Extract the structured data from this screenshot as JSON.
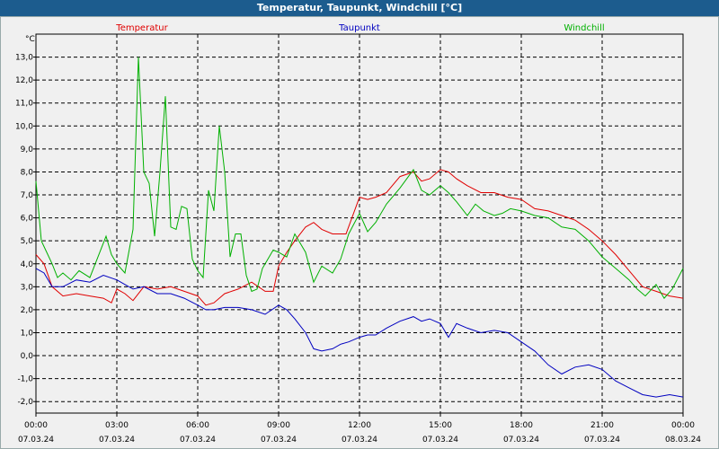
{
  "window": {
    "title": "Temperatur, Taupunkt, Windchill [°C]"
  },
  "chart_data": {
    "type": "line",
    "title": "Temperatur, Taupunkt, Windchill [°C]",
    "ylabel": "°C",
    "ylim": [
      -2.5,
      14.0
    ],
    "xlim": [
      0,
      24
    ],
    "grid": true,
    "legend_placement": "top",
    "y_ticks": [
      "-2,0",
      "-1,0",
      "0,0",
      "1,0",
      "2,0",
      "3,0",
      "4,0",
      "5,0",
      "6,0",
      "7,0",
      "8,0",
      "9,0",
      "10,0",
      "11,0",
      "12,0",
      "13,0"
    ],
    "x_ticks": [
      {
        "time": "00:00",
        "date": "07.03.24"
      },
      {
        "time": "03:00",
        "date": "07.03.24"
      },
      {
        "time": "06:00",
        "date": "07.03.24"
      },
      {
        "time": "09:00",
        "date": "07.03.24"
      },
      {
        "time": "12:00",
        "date": "07.03.24"
      },
      {
        "time": "15:00",
        "date": "07.03.24"
      },
      {
        "time": "18:00",
        "date": "07.03.24"
      },
      {
        "time": "21:00",
        "date": "07.03.24"
      },
      {
        "time": "00:00",
        "date": "08.03.24"
      }
    ],
    "series": [
      {
        "name": "Temperatur",
        "color": "#e00000",
        "x": [
          0,
          0.3,
          0.6,
          1,
          1.5,
          2,
          2.5,
          2.8,
          3,
          3.3,
          3.6,
          4,
          4.5,
          5,
          5.5,
          6,
          6.3,
          6.6,
          7,
          7.5,
          8,
          8.5,
          8.8,
          9,
          9.3,
          9.6,
          10,
          10.3,
          10.6,
          11,
          11.5,
          12,
          12.3,
          12.6,
          13,
          13.5,
          14,
          14.3,
          14.6,
          15,
          15.3,
          15.6,
          16,
          16.5,
          17,
          17.5,
          18,
          18.5,
          19,
          19.5,
          20,
          20.5,
          21,
          21.5,
          22,
          22.5,
          23,
          23.5,
          24
        ],
        "values": [
          4.4,
          4.0,
          3.0,
          2.6,
          2.7,
          2.6,
          2.5,
          2.3,
          2.9,
          2.7,
          2.4,
          3.0,
          2.9,
          3.0,
          2.8,
          2.6,
          2.2,
          2.3,
          2.7,
          2.9,
          3.2,
          2.8,
          2.8,
          3.9,
          4.5,
          5.0,
          5.6,
          5.8,
          5.5,
          5.3,
          5.3,
          6.9,
          6.8,
          6.9,
          7.1,
          7.8,
          8.0,
          7.6,
          7.7,
          8.1,
          8.0,
          7.7,
          7.4,
          7.1,
          7.1,
          6.9,
          6.8,
          6.4,
          6.3,
          6.1,
          5.9,
          5.5,
          5.0,
          4.4,
          3.7,
          3.0,
          2.8,
          2.6,
          2.5
        ]
      },
      {
        "name": "Taupunkt",
        "color": "#0000c0",
        "x": [
          0,
          0.3,
          0.6,
          1,
          1.5,
          2,
          2.5,
          3,
          3.3,
          3.6,
          4,
          4.5,
          5,
          5.5,
          6,
          6.3,
          6.6,
          7,
          7.5,
          8,
          8.5,
          9,
          9.3,
          9.6,
          10,
          10.3,
          10.6,
          11,
          11.3,
          11.6,
          12,
          12.3,
          12.6,
          13,
          13.5,
          14,
          14.3,
          14.6,
          15,
          15.3,
          15.6,
          16,
          16.5,
          17,
          17.5,
          18,
          18.5,
          19,
          19.5,
          20,
          20.5,
          21,
          21.5,
          22,
          22.5,
          23,
          23.5,
          24
        ],
        "values": [
          3.8,
          3.6,
          3.0,
          3.0,
          3.3,
          3.2,
          3.5,
          3.3,
          3.1,
          2.9,
          3.0,
          2.7,
          2.7,
          2.5,
          2.2,
          2.0,
          2.0,
          2.1,
          2.1,
          2.0,
          1.8,
          2.2,
          2.0,
          1.6,
          1.0,
          0.3,
          0.2,
          0.3,
          0.5,
          0.6,
          0.8,
          0.9,
          0.9,
          1.2,
          1.5,
          1.7,
          1.5,
          1.6,
          1.4,
          0.8,
          1.4,
          1.2,
          1.0,
          1.1,
          1.0,
          0.6,
          0.2,
          -0.4,
          -0.8,
          -0.5,
          -0.4,
          -0.6,
          -1.1,
          -1.4,
          -1.7,
          -1.8,
          -1.7,
          -1.8
        ]
      },
      {
        "name": "Windchill",
        "color": "#00b000",
        "x": [
          0,
          0.2,
          0.4,
          0.6,
          0.8,
          1,
          1.3,
          1.6,
          2,
          2.3,
          2.6,
          2.8,
          3,
          3.3,
          3.6,
          3.8,
          4,
          4.2,
          4.4,
          4.6,
          4.8,
          5,
          5.2,
          5.4,
          5.6,
          5.8,
          6,
          6.2,
          6.4,
          6.6,
          6.8,
          7,
          7.2,
          7.4,
          7.6,
          7.8,
          8,
          8.2,
          8.4,
          8.6,
          8.8,
          9,
          9.3,
          9.6,
          10,
          10.3,
          10.6,
          11,
          11.3,
          11.6,
          12,
          12.3,
          12.6,
          13,
          13.5,
          14,
          14.3,
          14.6,
          15,
          15.3,
          15.6,
          16,
          16.3,
          16.6,
          17,
          17.3,
          17.6,
          18,
          18.5,
          19,
          19.5,
          20,
          20.5,
          21,
          21.3,
          21.6,
          22,
          22.3,
          22.6,
          23,
          23.3,
          23.6,
          24
        ],
        "values": [
          7.6,
          5.0,
          4.5,
          4.0,
          3.4,
          3.6,
          3.3,
          3.7,
          3.4,
          4.3,
          5.2,
          4.4,
          4.0,
          3.6,
          5.5,
          13.0,
          8.0,
          7.5,
          5.2,
          8.0,
          11.3,
          5.6,
          5.5,
          6.5,
          6.4,
          4.2,
          3.7,
          3.4,
          7.2,
          6.3,
          10.0,
          8.0,
          4.3,
          5.3,
          5.3,
          3.5,
          2.8,
          2.9,
          3.8,
          4.2,
          4.6,
          4.5,
          4.3,
          5.3,
          4.5,
          3.2,
          3.9,
          3.6,
          4.2,
          5.3,
          6.2,
          5.4,
          5.8,
          6.6,
          7.3,
          8.1,
          7.2,
          7.0,
          7.4,
          7.1,
          6.7,
          6.1,
          6.6,
          6.3,
          6.1,
          6.2,
          6.4,
          6.3,
          6.1,
          6.0,
          5.6,
          5.5,
          5.0,
          4.3,
          4.0,
          3.7,
          3.3,
          2.9,
          2.6,
          3.1,
          2.5,
          2.9,
          3.8
        ]
      }
    ]
  }
}
